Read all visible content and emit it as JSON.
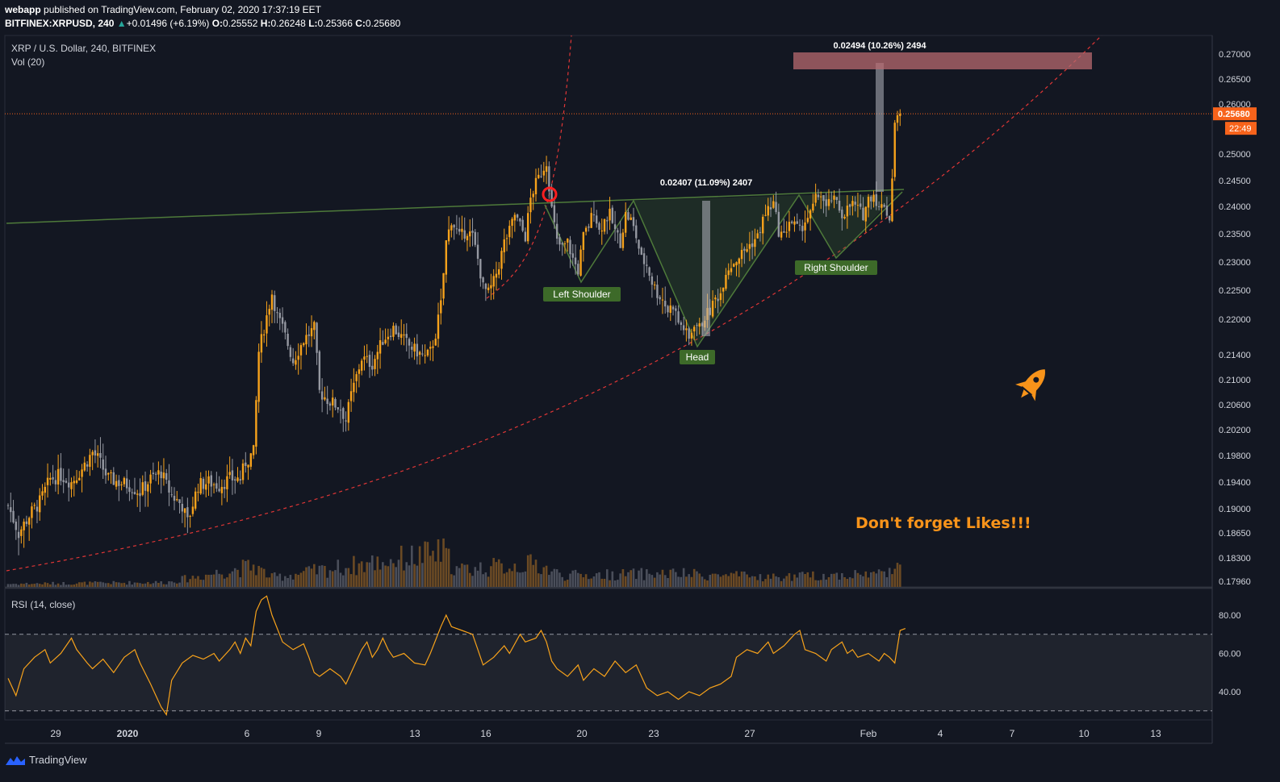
{
  "header": {
    "publisher": "webapp",
    "published_text": "published on TradingView.com, February 02, 2020 17:37:19 EET",
    "symbol": "BITFINEX:XRPUSD, 240",
    "change_arrow": "▲",
    "change": "+0.01496 (+6.19%)",
    "o_label": "O:",
    "o": "0.25552",
    "h_label": "H:",
    "h": "0.26248",
    "l_label": "L:",
    "l": "0.25366",
    "c_label": "C:",
    "c": "0.25680"
  },
  "legend": {
    "title": "XRP / U.S. Dollar, 240, BITFINEX",
    "vol": "Vol (20)",
    "rsi": "RSI (14, close)"
  },
  "footer": {
    "brand": "TradingView"
  },
  "colors": {
    "background": "#131722",
    "up": "#f7a21b",
    "down": "#9598a1",
    "pattern": "#4e7a3a",
    "curve": "#e03636",
    "target_box": "#b86a6f",
    "rsi_line": "#f7a21b",
    "price_badge": "#f7631b"
  },
  "chart_data": {
    "type": "candlestick",
    "symbol": "XRP / U.S. Dollar",
    "timeframe": "240",
    "exchange": "BITFINEX",
    "last_price": "0.25680",
    "countdown": "22:49",
    "y_ticks": [
      "0.27000",
      "0.26500",
      "0.26000",
      "0.25500",
      "0.25000",
      "0.24500",
      "0.24000",
      "0.23500",
      "0.23000",
      "0.22500",
      "0.22000",
      "0.21400",
      "0.21000",
      "0.20600",
      "0.20200",
      "0.19800",
      "0.19400",
      "0.19000",
      "0.18650",
      "0.18300",
      "0.17960"
    ],
    "x_ticks": [
      "29",
      "2020",
      "6",
      "9",
      "13",
      "16",
      "20",
      "23",
      "27",
      "Feb",
      "4",
      "7",
      "10",
      "13"
    ],
    "close_path": [
      [
        0,
        0.1905
      ],
      [
        4,
        0.1865
      ],
      [
        8,
        0.189
      ],
      [
        12,
        0.191
      ],
      [
        16,
        0.1945
      ],
      [
        20,
        0.195
      ],
      [
        24,
        0.194
      ],
      [
        28,
        0.196
      ],
      [
        32,
        0.1985
      ],
      [
        34,
        0.1975
      ],
      [
        38,
        0.1945
      ],
      [
        42,
        0.194
      ],
      [
        46,
        0.1935
      ],
      [
        50,
        0.1925
      ],
      [
        54,
        0.1945
      ],
      [
        58,
        0.1955
      ],
      [
        60,
        0.1935
      ],
      [
        62,
        0.192
      ],
      [
        66,
        0.1905
      ],
      [
        68,
        0.188
      ],
      [
        72,
        0.1935
      ],
      [
        76,
        0.194
      ],
      [
        80,
        0.1935
      ],
      [
        84,
        0.1945
      ],
      [
        88,
        0.1945
      ],
      [
        90,
        0.197
      ],
      [
        93,
        0.1985
      ],
      [
        95,
        0.2145
      ],
      [
        98,
        0.2205
      ],
      [
        100,
        0.2245
      ],
      [
        102,
        0.2205
      ],
      [
        104,
        0.2185
      ],
      [
        108,
        0.213
      ],
      [
        112,
        0.2165
      ],
      [
        116,
        0.2185
      ],
      [
        118,
        0.208
      ],
      [
        122,
        0.2065
      ],
      [
        126,
        0.2055
      ],
      [
        128,
        0.2035
      ],
      [
        130,
        0.2075
      ],
      [
        134,
        0.2135
      ],
      [
        138,
        0.2125
      ],
      [
        142,
        0.2165
      ],
      [
        146,
        0.2185
      ],
      [
        148,
        0.2175
      ],
      [
        152,
        0.2155
      ],
      [
        155,
        0.2145
      ],
      [
        158,
        0.2135
      ],
      [
        160,
        0.2145
      ],
      [
        162,
        0.2175
      ],
      [
        164,
        0.2225
      ],
      [
        166,
        0.2335
      ],
      [
        168,
        0.2375
      ],
      [
        171,
        0.2345
      ],
      [
        174,
        0.2355
      ],
      [
        176,
        0.2345
      ],
      [
        178,
        0.2305
      ],
      [
        180,
        0.2255
      ],
      [
        182,
        0.2245
      ],
      [
        184,
        0.2265
      ],
      [
        186,
        0.2295
      ],
      [
        188,
        0.2335
      ],
      [
        190,
        0.2355
      ],
      [
        192,
        0.2385
      ],
      [
        194,
        0.2365
      ],
      [
        196,
        0.2345
      ],
      [
        198,
        0.2415
      ],
      [
        200,
        0.2445
      ],
      [
        202,
        0.2465
      ],
      [
        204,
        0.2485
      ],
      [
        206,
        0.2395
      ],
      [
        208,
        0.2335
      ],
      [
        210,
        0.2325
      ],
      [
        212,
        0.2335
      ],
      [
        214,
        0.2305
      ],
      [
        216,
        0.2285
      ],
      [
        218,
        0.2345
      ],
      [
        220,
        0.2365
      ],
      [
        222,
        0.2395
      ],
      [
        224,
        0.2355
      ],
      [
        226,
        0.2375
      ],
      [
        228,
        0.2385
      ],
      [
        230,
        0.2355
      ],
      [
        232,
        0.2335
      ],
      [
        234,
        0.2385
      ],
      [
        236,
        0.2375
      ],
      [
        238,
        0.2345
      ],
      [
        240,
        0.2305
      ],
      [
        242,
        0.2295
      ],
      [
        244,
        0.2265
      ],
      [
        246,
        0.2245
      ],
      [
        248,
        0.2235
      ],
      [
        250,
        0.2215
      ],
      [
        252,
        0.2225
      ],
      [
        254,
        0.2195
      ],
      [
        256,
        0.2185
      ],
      [
        258,
        0.2165
      ],
      [
        260,
        0.2195
      ],
      [
        262,
        0.2185
      ],
      [
        264,
        0.2205
      ],
      [
        266,
        0.2215
      ],
      [
        268,
        0.2235
      ],
      [
        270,
        0.2245
      ],
      [
        272,
        0.2285
      ],
      [
        274,
        0.2295
      ],
      [
        276,
        0.2305
      ],
      [
        278,
        0.2315
      ],
      [
        280,
        0.2325
      ],
      [
        282,
        0.2335
      ],
      [
        284,
        0.2345
      ],
      [
        286,
        0.2375
      ],
      [
        288,
        0.2395
      ],
      [
        290,
        0.2405
      ],
      [
        292,
        0.2355
      ],
      [
        294,
        0.2345
      ],
      [
        296,
        0.2375
      ],
      [
        298,
        0.2365
      ],
      [
        300,
        0.2355
      ],
      [
        302,
        0.2375
      ],
      [
        304,
        0.2385
      ],
      [
        306,
        0.2415
      ],
      [
        308,
        0.2425
      ],
      [
        310,
        0.2395
      ],
      [
        312,
        0.2415
      ],
      [
        314,
        0.2405
      ],
      [
        316,
        0.2385
      ],
      [
        318,
        0.2395
      ],
      [
        320,
        0.2405
      ],
      [
        322,
        0.2395
      ],
      [
        324,
        0.2385
      ],
      [
        326,
        0.2415
      ],
      [
        328,
        0.2425
      ],
      [
        330,
        0.2395
      ],
      [
        332,
        0.2405
      ],
      [
        334,
        0.2375
      ],
      [
        336,
        0.2545
      ],
      [
        338,
        0.2568
      ]
    ],
    "volume_profile": [
      [
        0,
        0.08
      ],
      [
        60,
        0.12
      ],
      [
        93,
        0.55
      ],
      [
        100,
        0.25
      ],
      [
        165,
        0.9
      ],
      [
        170,
        0.45
      ],
      [
        200,
        0.6
      ],
      [
        210,
        0.3
      ],
      [
        250,
        0.35
      ],
      [
        290,
        0.25
      ],
      [
        310,
        0.3
      ],
      [
        330,
        0.35
      ],
      [
        338,
        0.65
      ]
    ],
    "rsi": {
      "levels": [
        70,
        30
      ],
      "y_ticks": [
        "80.00",
        "60.00",
        "40.00"
      ],
      "values": [
        [
          0,
          47
        ],
        [
          3,
          38
        ],
        [
          6,
          52
        ],
        [
          10,
          58
        ],
        [
          14,
          62
        ],
        [
          16,
          55
        ],
        [
          20,
          60
        ],
        [
          24,
          68
        ],
        [
          26,
          62
        ],
        [
          30,
          55
        ],
        [
          32,
          52
        ],
        [
          36,
          57
        ],
        [
          40,
          50
        ],
        [
          44,
          58
        ],
        [
          48,
          62
        ],
        [
          50,
          55
        ],
        [
          54,
          44
        ],
        [
          56,
          38
        ],
        [
          58,
          32
        ],
        [
          60,
          28
        ],
        [
          62,
          46
        ],
        [
          66,
          55
        ],
        [
          70,
          59
        ],
        [
          74,
          57
        ],
        [
          78,
          60
        ],
        [
          80,
          56
        ],
        [
          84,
          62
        ],
        [
          86,
          66
        ],
        [
          88,
          60
        ],
        [
          90,
          68
        ],
        [
          92,
          64
        ],
        [
          94,
          82
        ],
        [
          96,
          88
        ],
        [
          98,
          90
        ],
        [
          100,
          80
        ],
        [
          104,
          66
        ],
        [
          108,
          62
        ],
        [
          112,
          65
        ],
        [
          114,
          58
        ],
        [
          116,
          50
        ],
        [
          118,
          48
        ],
        [
          122,
          52
        ],
        [
          126,
          48
        ],
        [
          128,
          44
        ],
        [
          130,
          50
        ],
        [
          132,
          56
        ],
        [
          134,
          62
        ],
        [
          136,
          66
        ],
        [
          138,
          58
        ],
        [
          140,
          62
        ],
        [
          142,
          68
        ],
        [
          144,
          62
        ],
        [
          146,
          58
        ],
        [
          150,
          60
        ],
        [
          154,
          55
        ],
        [
          158,
          54
        ],
        [
          160,
          60
        ],
        [
          164,
          74
        ],
        [
          166,
          80
        ],
        [
          168,
          74
        ],
        [
          172,
          72
        ],
        [
          176,
          70
        ],
        [
          178,
          62
        ],
        [
          180,
          54
        ],
        [
          184,
          58
        ],
        [
          188,
          64
        ],
        [
          190,
          60
        ],
        [
          194,
          70
        ],
        [
          196,
          66
        ],
        [
          200,
          68
        ],
        [
          202,
          72
        ],
        [
          204,
          66
        ],
        [
          206,
          56
        ],
        [
          208,
          52
        ],
        [
          212,
          48
        ],
        [
          216,
          54
        ],
        [
          218,
          46
        ],
        [
          222,
          52
        ],
        [
          226,
          48
        ],
        [
          230,
          56
        ],
        [
          234,
          50
        ],
        [
          238,
          54
        ],
        [
          240,
          48
        ],
        [
          242,
          42
        ],
        [
          246,
          38
        ],
        [
          250,
          40
        ],
        [
          254,
          36
        ],
        [
          258,
          40
        ],
        [
          262,
          38
        ],
        [
          266,
          42
        ],
        [
          270,
          44
        ],
        [
          274,
          48
        ],
        [
          276,
          58
        ],
        [
          280,
          62
        ],
        [
          284,
          60
        ],
        [
          288,
          66
        ],
        [
          290,
          60
        ],
        [
          294,
          64
        ],
        [
          298,
          70
        ],
        [
          300,
          72
        ],
        [
          302,
          62
        ],
        [
          306,
          60
        ],
        [
          310,
          56
        ],
        [
          312,
          62
        ],
        [
          316,
          66
        ],
        [
          318,
          60
        ],
        [
          320,
          62
        ],
        [
          322,
          58
        ],
        [
          326,
          60
        ],
        [
          328,
          58
        ],
        [
          330,
          56
        ],
        [
          332,
          60
        ],
        [
          334,
          58
        ],
        [
          336,
          55
        ],
        [
          338,
          72
        ],
        [
          340,
          73
        ]
      ]
    },
    "annotations": {
      "left_shoulder": "Left Shoulder",
      "head": "Head",
      "right_shoulder": "Right Shoulder",
      "neckline_measure": "0.02407 (11.09%) 2407",
      "target_measure": "0.02494 (10.26%) 2494",
      "note": "Don't forget Likes!!!"
    }
  }
}
